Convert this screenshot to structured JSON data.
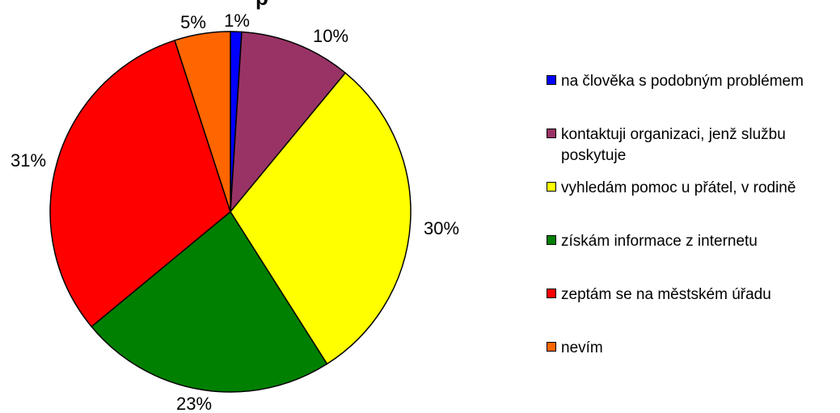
{
  "chart_data": {
    "type": "pie",
    "title": "",
    "slices": [
      {
        "label": "na člověka s podobným problémem",
        "value": 1,
        "label_text": "1%",
        "color": "#0000ff"
      },
      {
        "label": "kontaktuji organizaci, jenž službu poskytuje",
        "value": 10,
        "label_text": "10%",
        "color": "#993366"
      },
      {
        "label": "vyhledám pomoc u přátel, v rodině",
        "value": 30,
        "label_text": "30%",
        "color": "#ffff00"
      },
      {
        "label": "získám informace z internetu",
        "value": 23,
        "label_text": "23%",
        "color": "#008000"
      },
      {
        "label": "zeptám se na městském úřadu",
        "value": 31,
        "label_text": "31%",
        "color": "#ff0000"
      },
      {
        "label": "nevím",
        "value": 5,
        "label_text": "5%",
        "color": "#ff6600"
      }
    ],
    "legend_position": "right",
    "start_angle": "12 o'clock, clockwise"
  }
}
